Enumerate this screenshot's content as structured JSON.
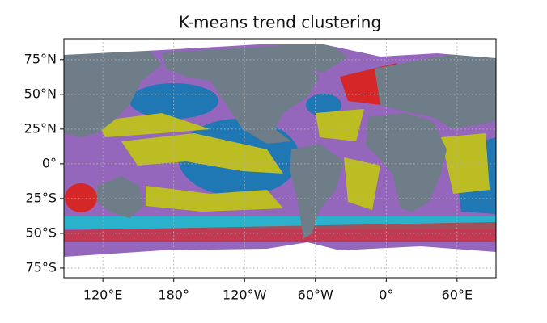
{
  "chart_data": {
    "type": "map",
    "title": "K-means trend clustering",
    "xlim": [
      87,
      453
    ],
    "ylim": [
      -82,
      90
    ],
    "xticks": [
      {
        "value": 120,
        "label": "120°E"
      },
      {
        "value": 180,
        "label": "180°"
      },
      {
        "value": 240,
        "label": "120°W"
      },
      {
        "value": 300,
        "label": "60°W"
      },
      {
        "value": 360,
        "label": "0°"
      },
      {
        "value": 420,
        "label": "60°E"
      }
    ],
    "yticks": [
      {
        "value": 75,
        "label": "75°N"
      },
      {
        "value": 50,
        "label": "50°N"
      },
      {
        "value": 25,
        "label": "25°N"
      },
      {
        "value": 0,
        "label": "0°"
      },
      {
        "value": -25,
        "label": "25°S"
      },
      {
        "value": -50,
        "label": "50°S"
      },
      {
        "value": -75,
        "label": "75°S"
      }
    ],
    "grid": true
  }
}
